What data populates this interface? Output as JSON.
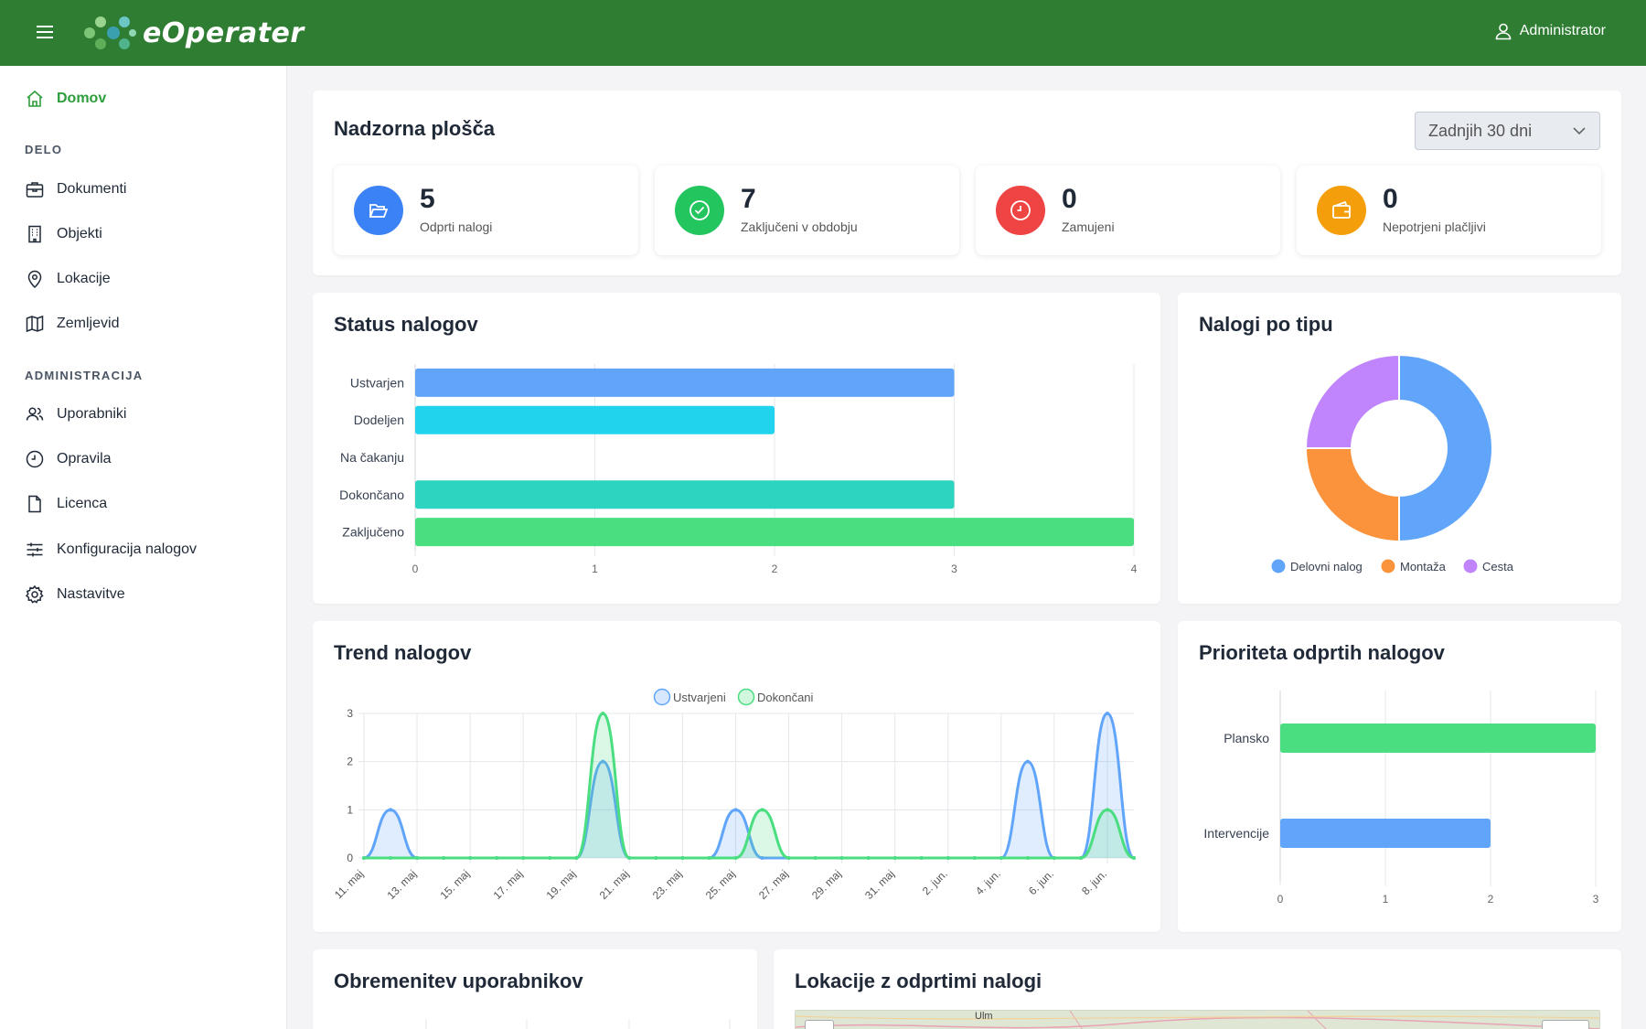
{
  "app": {
    "name": "eOperater",
    "user": "Administrator"
  },
  "sidebar": {
    "home": "Domov",
    "sections": [
      "DELO",
      "ADMINISTRACIJA"
    ],
    "items": [
      "Dokumenti",
      "Objekti",
      "Lokacije",
      "Zemljevid",
      "Uporabniki",
      "Opravila",
      "Licenca",
      "Konfiguracija nalogov",
      "Nastavitve"
    ]
  },
  "dashboard": {
    "title": "Nadzorna plošča",
    "period": "Zadnjih 30 dni",
    "stats": [
      {
        "value": "5",
        "label": "Odprti nalogi",
        "color": "#3b82f6",
        "icon": "folder-open-icon"
      },
      {
        "value": "7",
        "label": "Zaključeni v obdobju",
        "color": "#22c55e",
        "icon": "check-circle-icon"
      },
      {
        "value": "0",
        "label": "Zamujeni",
        "color": "#ef4444",
        "icon": "clock-icon"
      },
      {
        "value": "0",
        "label": "Nepotrjeni plačljivi",
        "color": "#f59e0b",
        "icon": "wallet-icon"
      }
    ]
  },
  "cards": {
    "status": "Status nalogov",
    "type": "Nalogi po tipu",
    "trend": "Trend nalogov",
    "priority": "Prioriteta odprtih nalogov",
    "workload": "Obremenitev uporabnikov",
    "locations": "Lokacije z odprtimi nalogi"
  },
  "map": {
    "label": "Ulm"
  },
  "chart_data": [
    {
      "type": "bar",
      "orientation": "horizontal",
      "categories": [
        "Ustvarjen",
        "Dodeljen",
        "Na čakanju",
        "Dokončano",
        "Zaključeno"
      ],
      "values": [
        3,
        2,
        0,
        3,
        4
      ],
      "colors": [
        "#60a5fa",
        "#22d3ee",
        "#a78bfa",
        "#2dd4bf",
        "#4ade80"
      ],
      "xlim": [
        0,
        4
      ],
      "xticks": [
        "0",
        "1",
        "2",
        "3",
        "4"
      ],
      "grid": true
    },
    {
      "type": "pie",
      "donut": true,
      "labels": [
        "Delovni nalog",
        "Montaža",
        "Cesta"
      ],
      "values": [
        2,
        1,
        1
      ],
      "colors": [
        "#60a5fa",
        "#fb923c",
        "#c084fc"
      ],
      "legend": "bottom"
    },
    {
      "type": "area",
      "categories": [
        "11. maj",
        "12. maj",
        "13. maj",
        "14. maj",
        "15. maj",
        "16. maj",
        "17. maj",
        "18. maj",
        "19. maj",
        "20. maj",
        "21. maj",
        "22. maj",
        "23. maj",
        "24. maj",
        "25. maj",
        "26. maj",
        "27. maj",
        "28. maj",
        "29. maj",
        "30. maj",
        "31. maj",
        "1. jun.",
        "2. jun.",
        "3. jun.",
        "4. jun.",
        "5. jun.",
        "6. jun.",
        "7. jun.",
        "8. jun.",
        "9. jun."
      ],
      "tick_labels": [
        "11. maj",
        "13. maj",
        "15. maj",
        "17. maj",
        "19. maj",
        "21. maj",
        "23. maj",
        "25. maj",
        "27. maj",
        "29. maj",
        "31. maj",
        "2. jun.",
        "4. jun.",
        "6. jun.",
        "8. jun."
      ],
      "series": [
        {
          "name": "Ustvarjeni",
          "color": "#60a5fa",
          "values": [
            0,
            1,
            0,
            0,
            0,
            0,
            0,
            0,
            0,
            2,
            0,
            0,
            0,
            0,
            1,
            0,
            0,
            0,
            0,
            0,
            0,
            0,
            0,
            0,
            0,
            2,
            0,
            0,
            3,
            0
          ]
        },
        {
          "name": "Dokončani",
          "color": "#4ade80",
          "values": [
            0,
            0,
            0,
            0,
            0,
            0,
            0,
            0,
            0,
            3,
            0,
            0,
            0,
            0,
            0,
            1,
            0,
            0,
            0,
            0,
            0,
            0,
            0,
            0,
            0,
            0,
            0,
            0,
            1,
            0
          ]
        }
      ],
      "ylim": [
        0,
        3
      ],
      "yticks": [
        "0",
        "1",
        "2",
        "3"
      ],
      "legend": "top",
      "grid": true
    },
    {
      "type": "bar",
      "orientation": "horizontal",
      "categories": [
        "Plansko",
        "Intervencije"
      ],
      "values": [
        3,
        2
      ],
      "colors": [
        "#4ade80",
        "#60a5fa"
      ],
      "xlim": [
        0,
        3
      ],
      "xticks": [
        "0",
        "1",
        "2",
        "3"
      ],
      "grid": true
    }
  ]
}
